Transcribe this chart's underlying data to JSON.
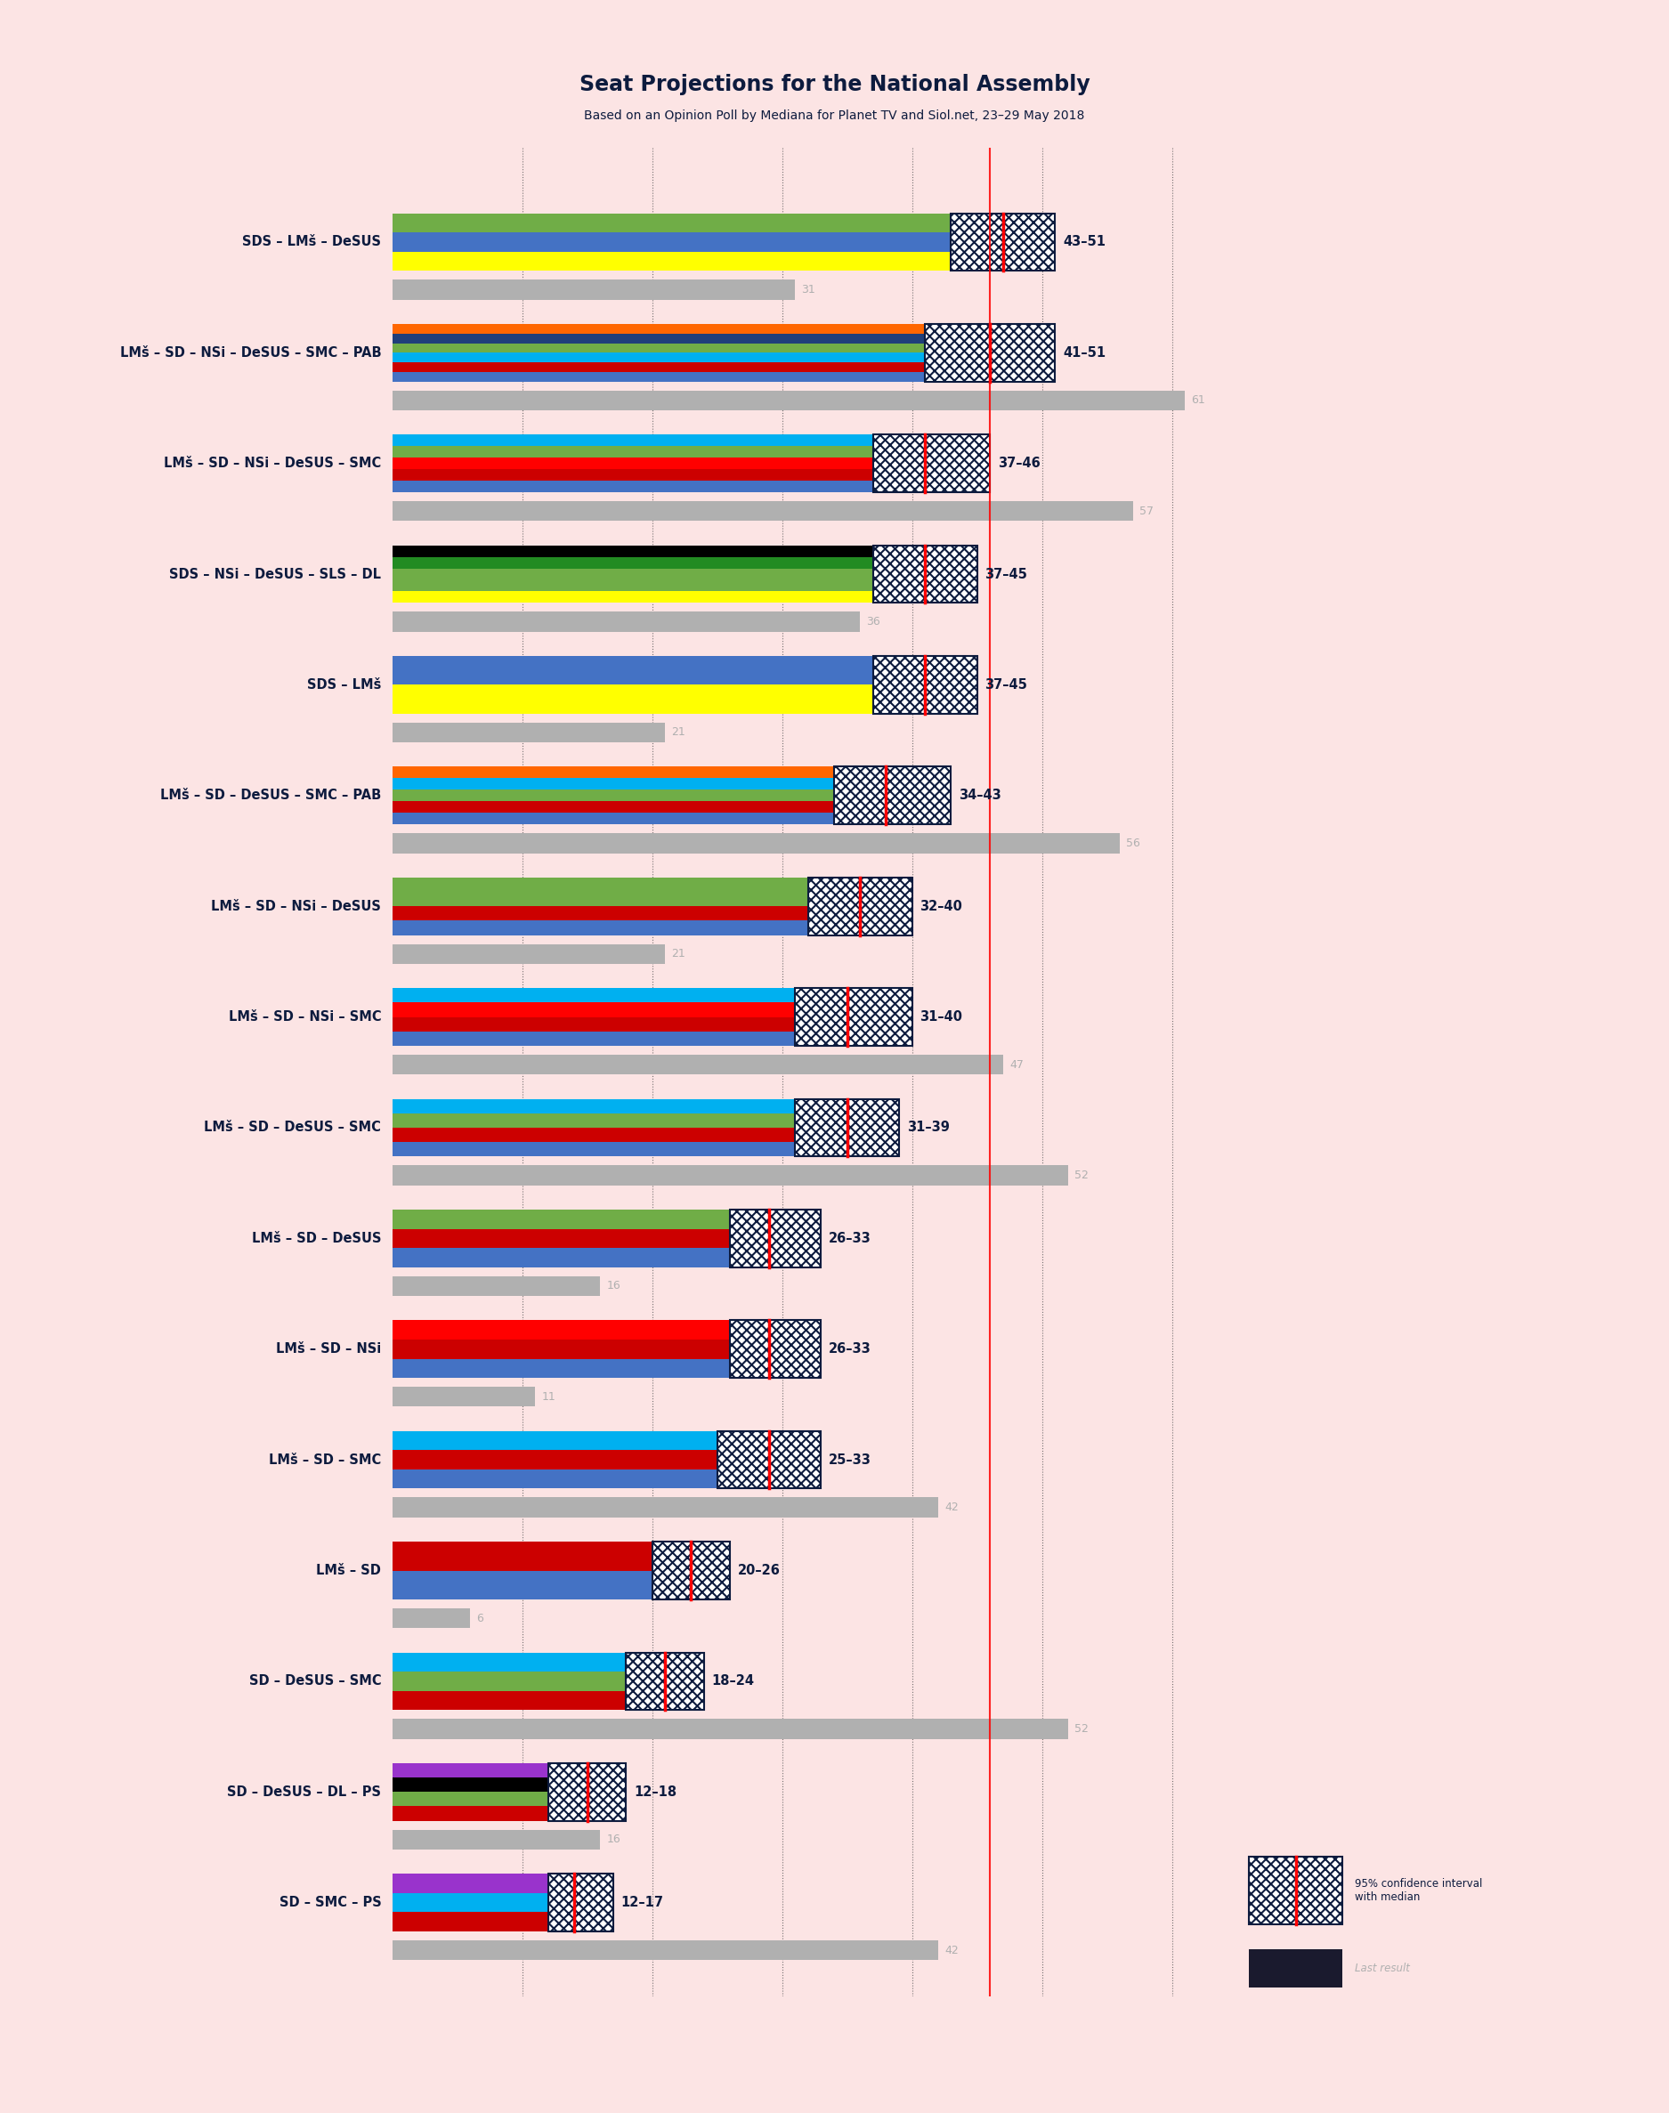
{
  "title": "Seat Projections for the National Assembly",
  "subtitle": "Based on an Opinion Poll by Mediana for Planet TV and Siol.net, 23–29 May 2018",
  "background_color": "#fce4e4",
  "title_color": "#0d1b3e",
  "coalitions": [
    {
      "name": "SDS – LMš – DeSUS",
      "low": 43,
      "high": 51,
      "median": 47,
      "last": 31
    },
    {
      "name": "LMš – SD – NSi – DeSUS – SMC – PAB",
      "low": 41,
      "high": 51,
      "median": 46,
      "last": 61
    },
    {
      "name": "LMš – SD – NSi – DeSUS – SMC",
      "low": 37,
      "high": 46,
      "median": 41,
      "last": 57
    },
    {
      "name": "SDS – NSi – DeSUS – SLS – DL",
      "low": 37,
      "high": 45,
      "median": 41,
      "last": 36
    },
    {
      "name": "SDS – LMš",
      "low": 37,
      "high": 45,
      "median": 41,
      "last": 21
    },
    {
      "name": "LMš – SD – DeSUS – SMC – PAB",
      "low": 34,
      "high": 43,
      "median": 38,
      "last": 56
    },
    {
      "name": "LMš – SD – NSi – DeSUS",
      "low": 32,
      "high": 40,
      "median": 36,
      "last": 21
    },
    {
      "name": "LMš – SD – NSi – SMC",
      "low": 31,
      "high": 40,
      "median": 35,
      "last": 47
    },
    {
      "name": "LMš – SD – DeSUS – SMC",
      "low": 31,
      "high": 39,
      "median": 35,
      "last": 52
    },
    {
      "name": "LMš – SD – DeSUS",
      "low": 26,
      "high": 33,
      "median": 29,
      "last": 16
    },
    {
      "name": "LMš – SD – NSi",
      "low": 26,
      "high": 33,
      "median": 29,
      "last": 11
    },
    {
      "name": "LMš – SD – SMC",
      "low": 25,
      "high": 33,
      "median": 29,
      "last": 42
    },
    {
      "name": "LMš – SD",
      "low": 20,
      "high": 26,
      "median": 23,
      "last": 6
    },
    {
      "name": "SD – DeSUS – SMC",
      "low": 18,
      "high": 24,
      "median": 21,
      "last": 52
    },
    {
      "name": "SD – DeSUS – DL – PS",
      "low": 12,
      "high": 18,
      "median": 15,
      "last": 16
    },
    {
      "name": "SD – SMC – PS",
      "low": 12,
      "high": 17,
      "median": 14,
      "last": 42
    }
  ],
  "coalition_colors": {
    "SDS – LMš – DeSUS": [
      "#ffff00",
      "#4472c4",
      "#70ad47"
    ],
    "LMš – SD – NSi – DeSUS – SMC – PAB": [
      "#4472c4",
      "#cc0000",
      "#00b0f0",
      "#70ad47",
      "#1f3f7a",
      "#ff6600"
    ],
    "LMš – SD – NSi – DeSUS – SMC": [
      "#4472c4",
      "#cc0000",
      "#ff0000",
      "#70ad47",
      "#00b0f0"
    ],
    "SDS – NSi – DeSUS – SLS – DL": [
      "#ffff00",
      "#70ad47",
      "#70ad47",
      "#228b22",
      "#000000"
    ],
    "SDS – LMš": [
      "#ffff00",
      "#4472c4"
    ],
    "LMš – SD – DeSUS – SMC – PAB": [
      "#4472c4",
      "#cc0000",
      "#70ad47",
      "#00b0f0",
      "#ff6600"
    ],
    "LMš – SD – NSi – DeSUS": [
      "#4472c4",
      "#cc0000",
      "#70ad47",
      "#70ad47"
    ],
    "LMš – SD – NSi – SMC": [
      "#4472c4",
      "#cc0000",
      "#ff0000",
      "#00b0f0"
    ],
    "LMš – SD – DeSUS – SMC": [
      "#4472c4",
      "#cc0000",
      "#70ad47",
      "#00b0f0"
    ],
    "LMš – SD – DeSUS": [
      "#4472c4",
      "#cc0000",
      "#70ad47"
    ],
    "LMš – SD – NSi": [
      "#4472c4",
      "#cc0000",
      "#ff0000"
    ],
    "LMš – SD – SMC": [
      "#4472c4",
      "#cc0000",
      "#00b0f0"
    ],
    "LMš – SD": [
      "#4472c4",
      "#cc0000"
    ],
    "SD – DeSUS – SMC": [
      "#cc0000",
      "#70ad47",
      "#00b0f0"
    ],
    "SD – DeSUS – DL – PS": [
      "#cc0000",
      "#70ad47",
      "#000000",
      "#9933cc"
    ],
    "SD – SMC – PS": [
      "#cc0000",
      "#00b0f0",
      "#9933cc"
    ]
  },
  "x_max": 70,
  "median_line_color": "#ff0000",
  "confidence_interval_edgecolor": "#0d1b3e",
  "last_result_color": "#b0b0b0",
  "grid_color": "#888888",
  "vertical_lines": [
    10,
    20,
    30,
    40,
    50,
    60
  ],
  "majority_line": 46
}
